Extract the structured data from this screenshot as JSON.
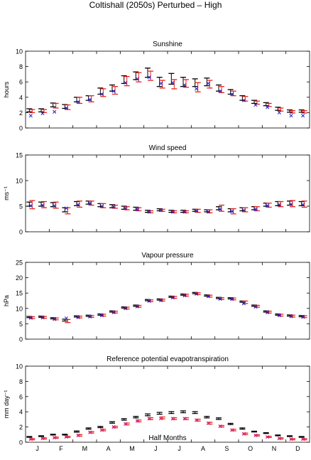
{
  "figure": {
    "title": "Coltishall (2050s) Perturbed – High",
    "xlabel": "Half Months",
    "months": [
      "J",
      "F",
      "M",
      "A",
      "M",
      "J",
      "J",
      "A",
      "S",
      "O",
      "N",
      "D"
    ]
  },
  "colors": {
    "black": "#000000",
    "red": "#e8211b",
    "blue": "#2020c8",
    "magenta": "#d0208a"
  },
  "chart_data": [
    {
      "type": "scatter",
      "title": "Sunshine",
      "ylabel": "hours",
      "ylim": [
        0,
        10
      ],
      "yticks": [
        "0",
        "2",
        "4",
        "6",
        "8",
        "10"
      ],
      "x": [
        1,
        2,
        3,
        4,
        5,
        6,
        7,
        8,
        9,
        10,
        11,
        12,
        13,
        14,
        15,
        16,
        17,
        18,
        19,
        20,
        21,
        22,
        23,
        24
      ],
      "series": [
        {
          "marker": "errorbar",
          "color": "#000000",
          "values": [
            2.3,
            2.3,
            3.0,
            2.8,
            3.7,
            3.9,
            4.8,
            5.2,
            6.3,
            6.8,
            7.2,
            6.0,
            6.4,
            6.0,
            5.9,
            6.0,
            5.2,
            4.7,
            3.9,
            3.4,
            3.1,
            2.5,
            2.2,
            2.2
          ],
          "err": [
            0.2,
            0.2,
            0.25,
            0.25,
            0.3,
            0.3,
            0.4,
            0.4,
            0.5,
            0.5,
            0.6,
            0.6,
            0.7,
            0.6,
            0.5,
            0.5,
            0.4,
            0.3,
            0.3,
            0.2,
            0.2,
            0.2,
            0.15,
            0.15
          ]
        },
        {
          "marker": "errorbar",
          "color": "#e8211b",
          "values": [
            2.2,
            2.2,
            2.9,
            2.7,
            3.6,
            3.8,
            4.6,
            4.9,
            6.1,
            6.6,
            6.8,
            5.7,
            5.7,
            5.8,
            5.3,
            5.7,
            5.0,
            4.5,
            3.8,
            3.3,
            3.0,
            2.4,
            2.1,
            2.1
          ],
          "err": [
            0.2,
            0.2,
            0.3,
            0.3,
            0.4,
            0.4,
            0.5,
            0.5,
            0.6,
            0.6,
            0.6,
            0.5,
            0.6,
            0.5,
            0.6,
            0.5,
            0.4,
            0.3,
            0.3,
            0.2,
            0.2,
            0.2,
            0.15,
            0.15
          ]
        },
        {
          "marker": "x",
          "color": "#2020c8",
          "values": [
            1.6,
            1.9,
            2.1,
            2.6,
            3.4,
            3.7,
            4.4,
            4.8,
            5.9,
            6.4,
            6.6,
            5.8,
            5.9,
            5.6,
            5.1,
            5.8,
            4.8,
            4.4,
            3.6,
            3.0,
            2.7,
            2.0,
            1.6,
            1.6
          ]
        }
      ]
    },
    {
      "type": "scatter",
      "title": "Wind speed",
      "ylabel": "ms⁻¹",
      "ylim": [
        0,
        15
      ],
      "yticks": [
        "0",
        "5",
        "10",
        "15"
      ],
      "x": [
        1,
        2,
        3,
        4,
        5,
        6,
        7,
        8,
        9,
        10,
        11,
        12,
        13,
        14,
        15,
        16,
        17,
        18,
        19,
        20,
        21,
        22,
        23,
        24
      ],
      "series": [
        {
          "marker": "errorbar",
          "color": "#000000",
          "values": [
            5.4,
            5.4,
            5.3,
            4.3,
            5.5,
            5.7,
            5.2,
            5.0,
            4.7,
            4.5,
            4.0,
            4.3,
            4.0,
            4.0,
            4.2,
            4.1,
            4.6,
            4.2,
            4.4,
            4.6,
            5.3,
            5.5,
            5.6,
            5.5
          ],
          "err": [
            0.4,
            0.4,
            0.4,
            0.4,
            0.4,
            0.3,
            0.3,
            0.3,
            0.3,
            0.3,
            0.2,
            0.2,
            0.2,
            0.2,
            0.2,
            0.2,
            0.3,
            0.3,
            0.3,
            0.3,
            0.3,
            0.4,
            0.4,
            0.4
          ]
        },
        {
          "marker": "errorbar",
          "color": "#e8211b",
          "values": [
            5.3,
            5.3,
            5.2,
            4.1,
            5.4,
            5.6,
            5.1,
            4.9,
            4.6,
            4.4,
            3.9,
            4.2,
            3.9,
            3.9,
            4.1,
            4.0,
            4.6,
            4.0,
            4.3,
            4.5,
            5.2,
            5.4,
            5.5,
            5.4
          ],
          "err": [
            0.8,
            0.6,
            0.6,
            0.6,
            0.6,
            0.4,
            0.4,
            0.3,
            0.3,
            0.3,
            0.2,
            0.2,
            0.2,
            0.2,
            0.3,
            0.3,
            0.6,
            0.5,
            0.4,
            0.4,
            0.4,
            0.5,
            0.6,
            0.6
          ]
        },
        {
          "marker": "x",
          "color": "#2020c8",
          "values": [
            5.1,
            5.2,
            5.1,
            4.6,
            5.3,
            5.6,
            5.0,
            4.9,
            4.6,
            4.4,
            3.9,
            4.2,
            3.9,
            3.9,
            4.1,
            3.9,
            4.4,
            4.0,
            4.2,
            4.4,
            5.1,
            5.3,
            5.4,
            5.3
          ]
        }
      ]
    },
    {
      "type": "scatter",
      "title": "Vapour pressure",
      "ylabel": "hPa",
      "ylim": [
        0,
        25
      ],
      "yticks": [
        "0",
        "5",
        "10",
        "15",
        "20",
        "25"
      ],
      "x": [
        1,
        2,
        3,
        4,
        5,
        6,
        7,
        8,
        9,
        10,
        11,
        12,
        13,
        14,
        15,
        16,
        17,
        18,
        19,
        20,
        21,
        22,
        23,
        24
      ],
      "series": [
        {
          "marker": "errorbar",
          "color": "#000000",
          "values": [
            7.2,
            7.3,
            6.8,
            6.2,
            7.4,
            7.6,
            8.0,
            9.0,
            10.3,
            10.9,
            12.7,
            12.9,
            13.8,
            14.5,
            15.0,
            14.2,
            13.4,
            13.3,
            12.2,
            10.9,
            9.0,
            8.0,
            7.7,
            7.5
          ],
          "err": [
            0.2,
            0.2,
            0.2,
            0.3,
            0.2,
            0.2,
            0.2,
            0.2,
            0.2,
            0.2,
            0.2,
            0.2,
            0.2,
            0.2,
            0.2,
            0.2,
            0.2,
            0.2,
            0.2,
            0.2,
            0.2,
            0.2,
            0.2,
            0.2
          ]
        },
        {
          "marker": "errorbar",
          "color": "#e8211b",
          "values": [
            7.0,
            7.1,
            6.6,
            5.9,
            7.2,
            7.4,
            7.8,
            8.8,
            10.1,
            10.7,
            12.5,
            12.7,
            13.6,
            14.3,
            14.8,
            14.0,
            13.2,
            13.1,
            12.0,
            10.7,
            8.8,
            7.8,
            7.5,
            7.3
          ],
          "err": [
            0.3,
            0.3,
            0.3,
            0.5,
            0.3,
            0.3,
            0.3,
            0.3,
            0.3,
            0.3,
            0.3,
            0.3,
            0.3,
            0.3,
            0.3,
            0.3,
            0.3,
            0.3,
            0.4,
            0.3,
            0.3,
            0.3,
            0.3,
            0.3
          ]
        },
        {
          "marker": "x",
          "color": "#2020c8",
          "values": [
            6.9,
            7.0,
            6.5,
            6.8,
            7.1,
            7.3,
            7.7,
            8.7,
            10.0,
            10.6,
            12.4,
            12.6,
            13.5,
            14.2,
            14.7,
            13.9,
            13.1,
            13.0,
            11.6,
            10.5,
            8.7,
            7.7,
            7.4,
            7.2
          ]
        }
      ]
    },
    {
      "type": "scatter",
      "title": "Reference potential evapotranspiration",
      "ylabel": "mm day⁻¹",
      "ylim": [
        0,
        10
      ],
      "yticks": [
        "0",
        "2",
        "4",
        "6",
        "8",
        "10"
      ],
      "x": [
        1,
        2,
        3,
        4,
        5,
        6,
        7,
        8,
        9,
        10,
        11,
        12,
        13,
        14,
        15,
        16,
        17,
        18,
        19,
        20,
        21,
        22,
        23,
        24
      ],
      "series": [
        {
          "marker": "errorbar",
          "color": "#000000",
          "values": [
            0.7,
            0.8,
            1.0,
            1.0,
            1.4,
            1.8,
            2.0,
            2.6,
            3.0,
            3.3,
            3.6,
            3.8,
            3.9,
            4.0,
            3.9,
            3.3,
            3.1,
            2.4,
            1.8,
            1.4,
            1.2,
            0.9,
            0.8,
            0.7
          ],
          "err": [
            0.05,
            0.05,
            0.05,
            0.05,
            0.08,
            0.08,
            0.08,
            0.1,
            0.1,
            0.1,
            0.12,
            0.12,
            0.12,
            0.12,
            0.12,
            0.1,
            0.1,
            0.08,
            0.08,
            0.05,
            0.05,
            0.05,
            0.05,
            0.05
          ]
        },
        {
          "marker": "errorbar",
          "color": "#e8211b",
          "values": [
            0.4,
            0.5,
            0.6,
            0.7,
            0.9,
            1.3,
            1.6,
            2.0,
            2.4,
            2.8,
            3.1,
            3.2,
            3.1,
            3.1,
            2.9,
            2.5,
            2.1,
            1.6,
            1.1,
            0.9,
            0.7,
            0.5,
            0.4,
            0.4
          ],
          "err": [
            0.08,
            0.08,
            0.08,
            0.08,
            0.1,
            0.1,
            0.1,
            0.1,
            0.12,
            0.12,
            0.12,
            0.12,
            0.12,
            0.12,
            0.12,
            0.12,
            0.1,
            0.1,
            0.1,
            0.08,
            0.08,
            0.08,
            0.08,
            0.08
          ]
        },
        {
          "marker": "x",
          "color": "#d0208a",
          "values": [
            0.4,
            0.5,
            0.6,
            0.7,
            0.9,
            1.3,
            1.6,
            2.0,
            2.4,
            2.8,
            3.1,
            3.1,
            3.1,
            3.1,
            2.9,
            2.5,
            2.1,
            1.6,
            1.1,
            0.9,
            0.7,
            0.5,
            0.4,
            0.4
          ]
        }
      ]
    }
  ]
}
